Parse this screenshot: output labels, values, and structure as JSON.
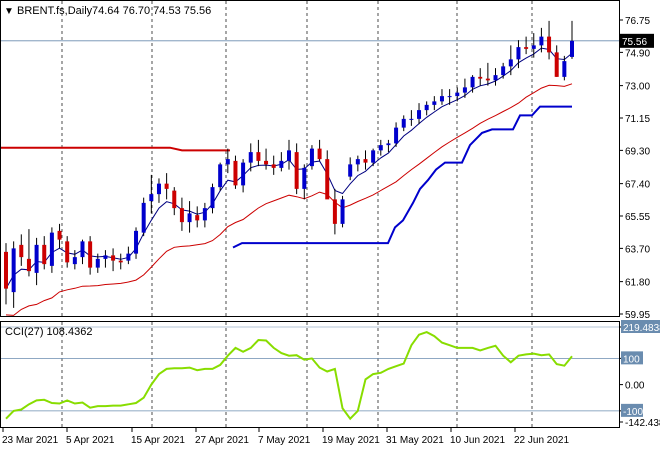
{
  "main_header": {
    "arrow_glyph": "▼",
    "symbol_text": "BRENT.fs,Daily",
    "ohlc_text": "74.64 76.70 74.53 75.56"
  },
  "cci_header": {
    "label": "CCI(27) 108.4362"
  },
  "price_axis": {
    "ticks": [
      "76.75",
      "74.90",
      "73.00",
      "71.15",
      "69.30",
      "67.40",
      "65.55",
      "63.70",
      "61.80",
      "59.95"
    ],
    "current_price_label": "75.56"
  },
  "cci_axis": {
    "ticks": [
      "219.4838",
      "100",
      "0.00",
      "-100",
      "-142.4382"
    ]
  },
  "time_axis": {
    "labels": [
      "23 Mar 2021",
      "5 Apr 2021",
      "15 Apr 2021",
      "27 Apr 2021",
      "7 May 2021",
      "19 May 2021",
      "31 May 2021",
      "10 Jun 2021",
      "22 Jun 2021"
    ]
  },
  "colors": {
    "bull_candle": "#0000cc",
    "bear_candle": "#cc0000",
    "ma_fast": "#000080",
    "ma_slow": "#cc0000",
    "support_line": "#0000cc",
    "resistance_line": "#cc0000",
    "cci_line": "#88dd00",
    "axis_text": "#000000",
    "last_price_box": "#000000"
  },
  "chart_data": [
    {
      "type": "candlestick",
      "title": "BRENT.fs,Daily",
      "x": [
        "2021-03-18",
        "2021-03-19",
        "2021-03-22",
        "2021-03-23",
        "2021-03-24",
        "2021-03-25",
        "2021-03-26",
        "2021-03-29",
        "2021-03-30",
        "2021-03-31",
        "2021-04-01",
        "2021-04-05",
        "2021-04-06",
        "2021-04-07",
        "2021-04-08",
        "2021-04-09",
        "2021-04-12",
        "2021-04-13",
        "2021-04-14",
        "2021-04-15",
        "2021-04-16",
        "2021-04-19",
        "2021-04-20",
        "2021-04-21",
        "2021-04-22",
        "2021-04-23",
        "2021-04-26",
        "2021-04-27",
        "2021-04-28",
        "2021-04-29",
        "2021-04-30",
        "2021-05-03",
        "2021-05-04",
        "2021-05-05",
        "2021-05-06",
        "2021-05-07",
        "2021-05-10",
        "2021-05-11",
        "2021-05-12",
        "2021-05-13",
        "2021-05-14",
        "2021-05-17",
        "2021-05-18",
        "2021-05-19",
        "2021-05-20",
        "2021-05-21",
        "2021-05-24",
        "2021-05-25",
        "2021-05-26",
        "2021-05-27",
        "2021-05-28",
        "2021-05-31",
        "2021-06-01",
        "2021-06-02",
        "2021-06-03",
        "2021-06-04",
        "2021-06-07",
        "2021-06-08",
        "2021-06-09",
        "2021-06-10",
        "2021-06-11",
        "2021-06-14",
        "2021-06-15",
        "2021-06-16",
        "2021-06-17",
        "2021-06-18",
        "2021-06-21",
        "2021-06-22",
        "2021-06-23",
        "2021-06-24",
        "2021-06-25",
        "2021-06-28",
        "2021-06-29",
        "2021-06-30",
        "2021-07-01"
      ],
      "open": [
        63.5,
        61.2,
        63.9,
        63.1,
        62.3,
        63.9,
        62.7,
        64.7,
        64.1,
        62.8,
        63.2,
        64.1,
        62.6,
        63.1,
        63.3,
        63.0,
        63.0,
        63.4,
        64.6,
        66.4,
        66.8,
        67.4,
        67.0,
        66.0,
        65.2,
        65.6,
        65.3,
        66.0,
        67.2,
        68.5,
        68.7,
        67.3,
        68.6,
        69.2,
        68.7,
        68.5,
        68.3,
        68.7,
        69.2,
        67.1,
        68.4,
        69.4,
        68.8,
        66.5,
        65.1,
        67.8,
        68.5,
        68.8,
        68.6,
        69.3,
        69.6,
        69.7,
        70.6,
        71.1,
        71.1,
        71.6,
        71.9,
        72.1,
        72.4,
        72.4,
        72.6,
        72.9,
        73.5,
        73.4,
        73.3,
        73.6,
        74.1,
        74.5,
        75.2,
        75.1,
        75.3,
        75.8,
        74.9,
        73.5,
        74.64
      ],
      "high": [
        64.0,
        64.1,
        64.5,
        64.8,
        64.3,
        64.4,
        64.9,
        65.1,
        64.4,
        63.6,
        64.2,
        64.4,
        63.4,
        63.6,
        63.7,
        63.4,
        63.8,
        64.9,
        66.6,
        67.9,
        67.7,
        68.0,
        67.2,
        66.6,
        66.4,
        66.1,
        66.3,
        67.4,
        68.6,
        69.4,
        69.0,
        68.8,
        69.7,
        69.9,
        69.4,
        69.0,
        69.2,
        69.9,
        69.7,
        68.5,
        69.6,
        69.9,
        69.3,
        67.1,
        66.7,
        68.9,
        69.0,
        69.3,
        69.4,
        69.9,
        69.9,
        70.9,
        71.3,
        71.6,
        72.0,
        72.1,
        72.4,
        72.8,
        72.8,
        72.9,
        73.4,
        73.6,
        74.0,
        74.3,
        74.0,
        74.3,
        75.3,
        75.6,
        75.8,
        76.0,
        76.3,
        76.7,
        75.3,
        74.7,
        76.7
      ],
      "low": [
        60.5,
        60.3,
        62.7,
        62.1,
        61.6,
        62.5,
        62.3,
        63.7,
        62.6,
        62.5,
        62.8,
        62.2,
        62.3,
        62.6,
        62.4,
        62.5,
        62.8,
        63.1,
        64.4,
        65.7,
        66.3,
        66.5,
        65.6,
        64.7,
        64.6,
        64.9,
        64.9,
        65.7,
        67.0,
        68.0,
        67.1,
        66.9,
        68.1,
        68.4,
        68.2,
        67.9,
        68.1,
        68.2,
        66.8,
        66.5,
        68.2,
        68.7,
        66.6,
        64.5,
        64.9,
        67.6,
        68.1,
        68.2,
        68.4,
        69.0,
        69.2,
        69.5,
        70.4,
        70.7,
        70.8,
        71.3,
        71.6,
        71.9,
        71.9,
        72.1,
        72.3,
        72.6,
        73.0,
        73.0,
        73.0,
        73.4,
        73.6,
        74.0,
        74.8,
        74.6,
        74.9,
        74.5,
        73.5,
        73.3,
        74.53
      ],
      "close": [
        61.4,
        63.7,
        63.2,
        62.4,
        63.9,
        62.8,
        64.6,
        64.2,
        62.9,
        63.2,
        64.1,
        62.6,
        63.1,
        63.3,
        63.0,
        62.9,
        63.4,
        64.7,
        66.3,
        66.8,
        67.4,
        67.1,
        66.0,
        65.2,
        65.7,
        65.3,
        66.0,
        67.2,
        68.5,
        68.8,
        67.3,
        68.6,
        69.2,
        68.7,
        68.5,
        68.3,
        68.7,
        69.3,
        67.1,
        68.3,
        69.4,
        68.8,
        66.5,
        65.1,
        66.5,
        68.5,
        68.8,
        68.6,
        69.3,
        69.6,
        69.7,
        70.6,
        71.1,
        71.1,
        71.6,
        71.9,
        72.1,
        72.4,
        72.4,
        72.6,
        72.9,
        73.5,
        73.4,
        73.3,
        73.6,
        74.1,
        74.5,
        75.2,
        75.1,
        75.3,
        75.8,
        74.9,
        73.5,
        74.4,
        75.56
      ],
      "ylim": [
        59.95,
        77.1
      ]
    },
    {
      "type": "line",
      "title": "CCI(27) 108.4362",
      "x": [
        "2021-03-18",
        "2021-03-19",
        "2021-03-22",
        "2021-03-23",
        "2021-03-24",
        "2021-03-25",
        "2021-03-26",
        "2021-03-29",
        "2021-03-30",
        "2021-03-31",
        "2021-04-01",
        "2021-04-05",
        "2021-04-06",
        "2021-04-07",
        "2021-04-08",
        "2021-04-09",
        "2021-04-12",
        "2021-04-13",
        "2021-04-14",
        "2021-04-15",
        "2021-04-16",
        "2021-04-19",
        "2021-04-20",
        "2021-04-21",
        "2021-04-22",
        "2021-04-23",
        "2021-04-26",
        "2021-04-27",
        "2021-04-28",
        "2021-04-29",
        "2021-04-30",
        "2021-05-03",
        "2021-05-04",
        "2021-05-05",
        "2021-05-06",
        "2021-05-07",
        "2021-05-10",
        "2021-05-11",
        "2021-05-12",
        "2021-05-13",
        "2021-05-14",
        "2021-05-17",
        "2021-05-18",
        "2021-05-19",
        "2021-05-20",
        "2021-05-21",
        "2021-05-24",
        "2021-05-25",
        "2021-05-26",
        "2021-05-27",
        "2021-05-28",
        "2021-05-31",
        "2021-06-01",
        "2021-06-02",
        "2021-06-03",
        "2021-06-04",
        "2021-06-07",
        "2021-06-08",
        "2021-06-09",
        "2021-06-10",
        "2021-06-11",
        "2021-06-14",
        "2021-06-15",
        "2021-06-16",
        "2021-06-17",
        "2021-06-18",
        "2021-06-21",
        "2021-06-22",
        "2021-06-23",
        "2021-06-24",
        "2021-06-25",
        "2021-06-28",
        "2021-06-29",
        "2021-06-30",
        "2021-07-01"
      ],
      "series": [
        {
          "name": "CCI(27) 108.4362",
          "values": [
            -130,
            -100,
            -95,
            -75,
            -60,
            -58,
            -70,
            -72,
            -60,
            -72,
            -68,
            -88,
            -82,
            -82,
            -80,
            -80,
            -75,
            -70,
            -50,
            0,
            40,
            60,
            62,
            62,
            65,
            55,
            60,
            60,
            75,
            110,
            140,
            125,
            140,
            170,
            168,
            140,
            120,
            110,
            112,
            95,
            100,
            65,
            50,
            60,
            -90,
            -130,
            -100,
            20,
            40,
            45,
            60,
            70,
            80,
            150,
            190,
            200,
            185,
            160,
            150,
            140,
            140,
            140,
            130,
            140,
            148,
            110,
            85,
            110,
            115,
            118,
            112,
            115,
            78,
            72,
            108
          ]
        }
      ],
      "reference_lines": [
        100,
        -100
      ],
      "ylim": [
        -142.4382,
        219.4838
      ]
    }
  ]
}
